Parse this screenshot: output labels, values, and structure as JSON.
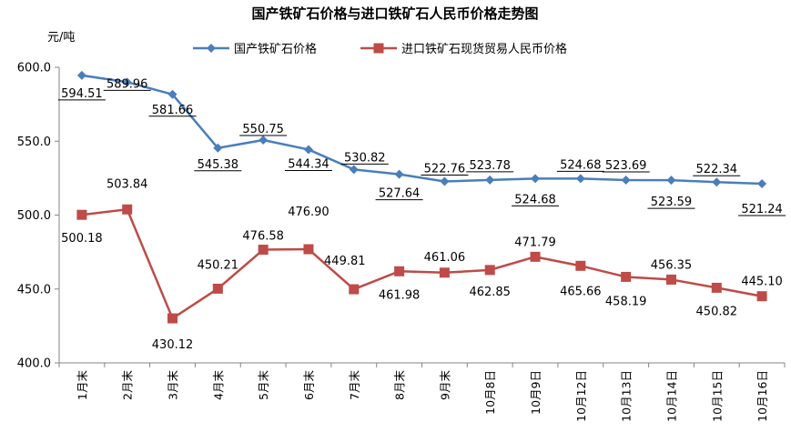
{
  "chart_data": {
    "type": "line",
    "title": "国产铁矿石价格与进口铁矿石人民币价格走势图",
    "ylabel": "元/吨",
    "xlabel": "",
    "ylim": [
      400,
      600
    ],
    "y_ticks": [
      "400.0",
      "450.0",
      "500.0",
      "550.0",
      "600.0"
    ],
    "categories": [
      "1月末",
      "2月末",
      "3月末",
      "4月末",
      "5月末",
      "6月末",
      "7月末",
      "8月末",
      "9月末",
      "10月8日",
      "10月9日",
      "10月12日",
      "10月13日",
      "10月14日",
      "10月15日",
      "10月16日"
    ],
    "legend_position": "top-center",
    "series": [
      {
        "name": "国产铁矿石价格",
        "color": "#4A7EBB",
        "marker": "diamond",
        "values": [
          594.51,
          589.96,
          581.66,
          545.38,
          550.75,
          544.34,
          530.82,
          527.64,
          522.76,
          523.78,
          524.68,
          524.68,
          523.69,
          523.59,
          522.34,
          521.24
        ],
        "labels": [
          "594.51",
          "589.96",
          "581.66",
          "545.38",
          "550.75",
          "544.34",
          "530.82",
          "527.64",
          "522.76",
          "523.78",
          "524.68",
          "524.68",
          "523.69",
          "523.59",
          "522.34",
          "521.24"
        ]
      },
      {
        "name": "进口铁矿石现货贸易人民币价格",
        "color": "#BE4B48",
        "marker": "square",
        "values": [
          500.18,
          503.84,
          430.12,
          450.21,
          476.58,
          476.9,
          449.81,
          461.98,
          461.06,
          462.85,
          471.79,
          465.66,
          458.19,
          456.35,
          450.82,
          445.1
        ],
        "labels": [
          "500.18",
          "503.84",
          "430.12",
          "450.21",
          "476.58",
          "476.90",
          "449.81",
          "461.98",
          "461.06",
          "462.85",
          "471.79",
          "465.66",
          "458.19",
          "456.35",
          "450.82",
          "445.10"
        ]
      }
    ]
  }
}
